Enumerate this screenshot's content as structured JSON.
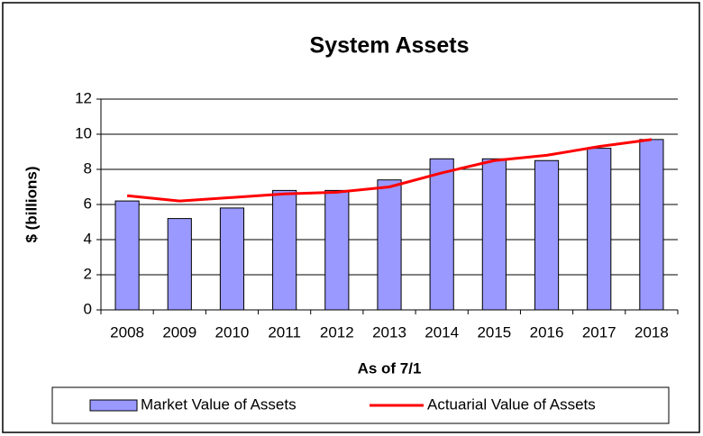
{
  "chart_data": {
    "type": "bar",
    "title": "System Assets",
    "x_label": "As of 7/1",
    "y_label": "$ (billions)",
    "categories": [
      "2008",
      "2009",
      "2010",
      "2011",
      "2012",
      "2013",
      "2014",
      "2015",
      "2016",
      "2017",
      "2018"
    ],
    "series": [
      {
        "name": "Market Value of Assets",
        "type": "bar",
        "color": "#9999ff",
        "values": [
          6.2,
          5.2,
          5.8,
          6.8,
          6.8,
          7.4,
          8.6,
          8.6,
          8.5,
          9.2,
          9.7
        ]
      },
      {
        "name": "Actuarial Value of Assets",
        "type": "line",
        "color": "#ff0000",
        "values": [
          6.5,
          6.2,
          6.4,
          6.6,
          6.7,
          7.0,
          7.8,
          8.5,
          8.8,
          9.3,
          9.7
        ]
      }
    ],
    "ylim": [
      0,
      12
    ],
    "yticks": [
      0,
      2,
      4,
      6,
      8,
      10,
      12
    ],
    "grid": true,
    "legend": "bottom"
  }
}
